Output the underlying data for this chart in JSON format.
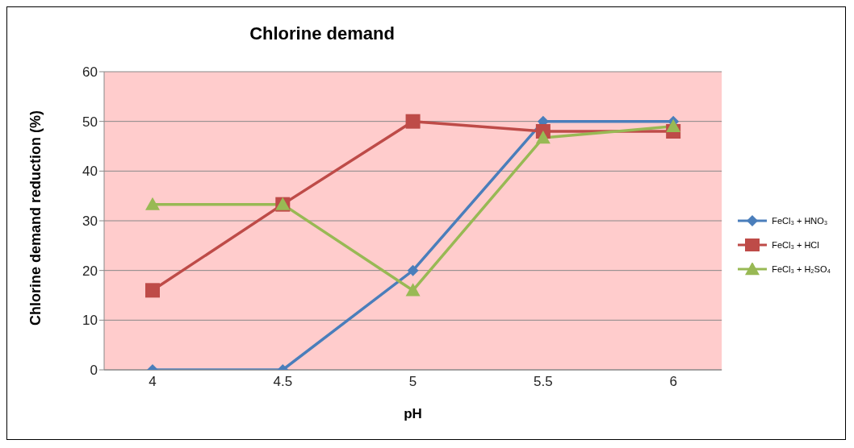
{
  "chart_data": {
    "type": "line",
    "title": "Chlorine demand",
    "xlabel": "pH",
    "ylabel": "Chlorine demand reduction (%)",
    "categories": [
      "4",
      "4.5",
      "5",
      "5.5",
      "6"
    ],
    "series": [
      {
        "name": "FeCl₃ + HNO₃",
        "color": "#4a7ebb",
        "marker": "diamond",
        "values": [
          0,
          0,
          20,
          50,
          50
        ]
      },
      {
        "name": "FeCl₃ + HCl",
        "color": "#be4b48",
        "marker": "square",
        "values": [
          16,
          33.3,
          50,
          48,
          48
        ]
      },
      {
        "name": "FeCl₃ + H₂SO₄",
        "color": "#98b954",
        "marker": "triangle",
        "values": [
          33.3,
          33.3,
          16,
          46.7,
          49
        ]
      }
    ],
    "ylim": [
      0,
      60
    ],
    "yticks": [
      0,
      10,
      20,
      30,
      40,
      50,
      60
    ],
    "grid": "y",
    "legend": "right",
    "line_style": "solid"
  }
}
